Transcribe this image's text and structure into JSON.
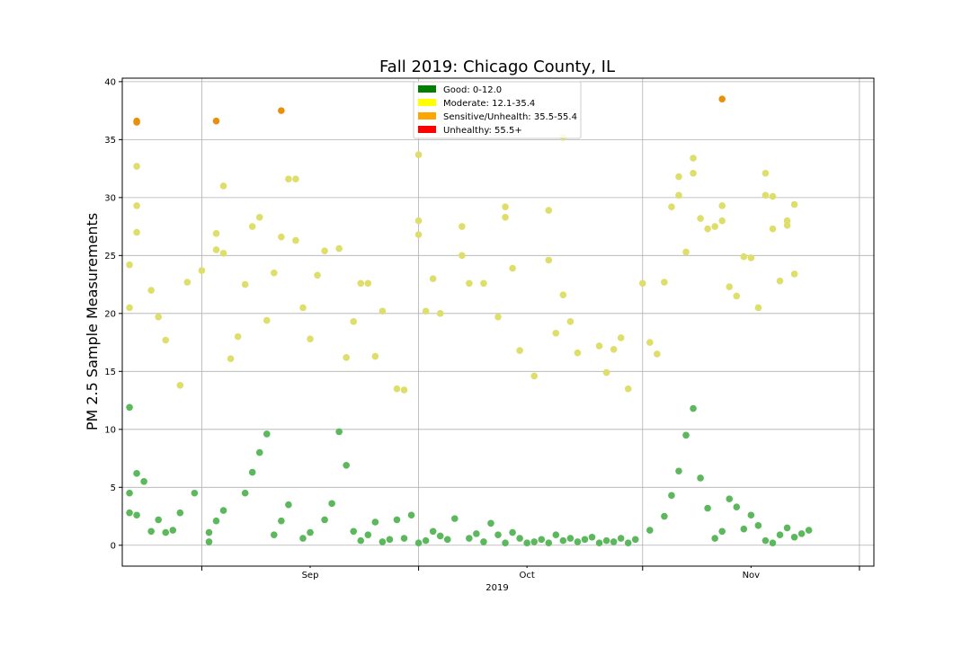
{
  "chart_data": {
    "type": "scatter",
    "title": "Fall 2019: Chicago County, IL",
    "ylabel": "PM 2.5 Sample Measurements",
    "xlabel": "",
    "x_axis": {
      "type": "date",
      "range": [
        "2019-08-21",
        "2019-12-03"
      ],
      "major_ticks": [
        "2019-09-01",
        "2019-10-01",
        "2019-11-01",
        "2019-12-01"
      ],
      "minor_tick_labels": [
        {
          "date": "2019-09-16",
          "label": "Sep"
        },
        {
          "date": "2019-10-16",
          "label": "Oct"
        },
        {
          "date": "2019-11-16",
          "label": "Nov"
        }
      ],
      "year_label": "2019"
    },
    "y_axis": {
      "range": [
        -1.8,
        40.3
      ],
      "ticks": [
        0,
        5,
        10,
        15,
        20,
        25,
        30,
        35,
        40
      ]
    },
    "grid": true,
    "legend": {
      "placement": "top-center",
      "entries": [
        {
          "label": "Good: 0-12.0",
          "color": "#008000"
        },
        {
          "label": "Moderate: 12.1-35.4",
          "color": "#ffff00"
        },
        {
          "label": "Sensitive/Unhealth: 35.5-55.4",
          "color": "#ffa500"
        },
        {
          "label": "Unhealthy: 55.5+",
          "color": "#ff0000"
        }
      ]
    },
    "category_colors": {
      "good": "#5cb85c",
      "moderate": "#dede6a",
      "sensitive": "#e8900c",
      "unhealthy": "#ff0000"
    },
    "series": [
      {
        "name": "Good: 0-12.0",
        "points": [
          [
            "2019-08-22",
            2.8
          ],
          [
            "2019-08-22",
            4.5
          ],
          [
            "2019-08-22",
            11.9
          ],
          [
            "2019-08-23",
            2.6
          ],
          [
            "2019-08-23",
            6.2
          ],
          [
            "2019-08-24",
            5.5
          ],
          [
            "2019-08-25",
            1.2
          ],
          [
            "2019-08-26",
            2.2
          ],
          [
            "2019-08-27",
            1.1
          ],
          [
            "2019-08-28",
            1.3
          ],
          [
            "2019-08-29",
            2.8
          ],
          [
            "2019-08-31",
            4.5
          ],
          [
            "2019-09-02",
            0.3
          ],
          [
            "2019-09-02",
            1.1
          ],
          [
            "2019-09-03",
            2.1
          ],
          [
            "2019-09-04",
            3.0
          ],
          [
            "2019-09-07",
            4.5
          ],
          [
            "2019-09-08",
            6.3
          ],
          [
            "2019-09-09",
            8.0
          ],
          [
            "2019-09-10",
            9.6
          ],
          [
            "2019-09-11",
            0.9
          ],
          [
            "2019-09-12",
            2.1
          ],
          [
            "2019-09-13",
            3.5
          ],
          [
            "2019-09-15",
            0.6
          ],
          [
            "2019-09-16",
            1.1
          ],
          [
            "2019-09-18",
            2.2
          ],
          [
            "2019-09-19",
            3.6
          ],
          [
            "2019-09-20",
            9.8
          ],
          [
            "2019-09-21",
            6.9
          ],
          [
            "2019-09-22",
            1.2
          ],
          [
            "2019-09-23",
            0.4
          ],
          [
            "2019-09-24",
            0.9
          ],
          [
            "2019-09-25",
            2.0
          ],
          [
            "2019-09-26",
            0.3
          ],
          [
            "2019-09-27",
            0.5
          ],
          [
            "2019-09-28",
            2.2
          ],
          [
            "2019-09-29",
            0.6
          ],
          [
            "2019-09-30",
            2.6
          ],
          [
            "2019-10-01",
            0.2
          ],
          [
            "2019-10-02",
            0.4
          ],
          [
            "2019-10-03",
            1.2
          ],
          [
            "2019-10-04",
            0.8
          ],
          [
            "2019-10-05",
            0.5
          ],
          [
            "2019-10-06",
            2.3
          ],
          [
            "2019-10-08",
            0.6
          ],
          [
            "2019-10-09",
            1.0
          ],
          [
            "2019-10-10",
            0.3
          ],
          [
            "2019-10-11",
            1.9
          ],
          [
            "2019-10-12",
            0.9
          ],
          [
            "2019-10-13",
            0.2
          ],
          [
            "2019-10-14",
            1.1
          ],
          [
            "2019-10-15",
            0.6
          ],
          [
            "2019-10-16",
            0.2
          ],
          [
            "2019-10-17",
            0.3
          ],
          [
            "2019-10-18",
            0.5
          ],
          [
            "2019-10-19",
            0.2
          ],
          [
            "2019-10-20",
            0.9
          ],
          [
            "2019-10-21",
            0.4
          ],
          [
            "2019-10-22",
            0.6
          ],
          [
            "2019-10-23",
            0.3
          ],
          [
            "2019-10-24",
            0.5
          ],
          [
            "2019-10-25",
            0.7
          ],
          [
            "2019-10-26",
            0.2
          ],
          [
            "2019-10-27",
            0.4
          ],
          [
            "2019-10-28",
            0.3
          ],
          [
            "2019-10-29",
            0.6
          ],
          [
            "2019-10-30",
            0.2
          ],
          [
            "2019-10-31",
            0.5
          ],
          [
            "2019-11-02",
            1.3
          ],
          [
            "2019-11-04",
            2.5
          ],
          [
            "2019-11-05",
            4.3
          ],
          [
            "2019-11-06",
            6.4
          ],
          [
            "2019-11-07",
            9.5
          ],
          [
            "2019-11-08",
            11.8
          ],
          [
            "2019-11-09",
            5.8
          ],
          [
            "2019-11-10",
            3.2
          ],
          [
            "2019-11-11",
            0.6
          ],
          [
            "2019-11-12",
            1.2
          ],
          [
            "2019-11-13",
            4.0
          ],
          [
            "2019-11-14",
            3.3
          ],
          [
            "2019-11-15",
            1.4
          ],
          [
            "2019-11-16",
            2.6
          ],
          [
            "2019-11-17",
            1.7
          ],
          [
            "2019-11-18",
            0.4
          ],
          [
            "2019-11-19",
            0.2
          ],
          [
            "2019-11-20",
            0.9
          ],
          [
            "2019-11-21",
            1.5
          ],
          [
            "2019-11-22",
            0.7
          ],
          [
            "2019-11-23",
            1.0
          ],
          [
            "2019-11-24",
            1.3
          ]
        ]
      },
      {
        "name": "Moderate: 12.1-35.4",
        "points": [
          [
            "2019-08-22",
            24.2
          ],
          [
            "2019-08-22",
            20.5
          ],
          [
            "2019-08-23",
            32.7
          ],
          [
            "2019-08-23",
            29.3
          ],
          [
            "2019-08-23",
            27.0
          ],
          [
            "2019-08-25",
            22.0
          ],
          [
            "2019-08-26",
            19.7
          ],
          [
            "2019-08-27",
            17.7
          ],
          [
            "2019-08-29",
            13.8
          ],
          [
            "2019-08-30",
            22.7
          ],
          [
            "2019-09-01",
            23.7
          ],
          [
            "2019-09-03",
            26.9
          ],
          [
            "2019-09-03",
            25.5
          ],
          [
            "2019-09-04",
            31.0
          ],
          [
            "2019-09-04",
            25.2
          ],
          [
            "2019-09-05",
            16.1
          ],
          [
            "2019-09-06",
            18.0
          ],
          [
            "2019-09-07",
            22.5
          ],
          [
            "2019-09-08",
            27.5
          ],
          [
            "2019-09-09",
            28.3
          ],
          [
            "2019-09-10",
            19.4
          ],
          [
            "2019-09-11",
            23.5
          ],
          [
            "2019-09-12",
            26.6
          ],
          [
            "2019-09-13",
            31.6
          ],
          [
            "2019-09-14",
            31.6
          ],
          [
            "2019-09-14",
            26.3
          ],
          [
            "2019-09-15",
            20.5
          ],
          [
            "2019-09-16",
            17.8
          ],
          [
            "2019-09-17",
            23.3
          ],
          [
            "2019-09-18",
            25.4
          ],
          [
            "2019-09-20",
            25.6
          ],
          [
            "2019-09-21",
            16.2
          ],
          [
            "2019-09-22",
            19.3
          ],
          [
            "2019-09-23",
            22.6
          ],
          [
            "2019-09-24",
            22.6
          ],
          [
            "2019-09-25",
            16.3
          ],
          [
            "2019-09-26",
            20.2
          ],
          [
            "2019-09-28",
            13.5
          ],
          [
            "2019-09-29",
            13.4
          ],
          [
            "2019-10-01",
            33.7
          ],
          [
            "2019-10-01",
            28.0
          ],
          [
            "2019-10-01",
            26.8
          ],
          [
            "2019-10-02",
            20.2
          ],
          [
            "2019-10-03",
            23.0
          ],
          [
            "2019-10-04",
            20.0
          ],
          [
            "2019-10-07",
            27.5
          ],
          [
            "2019-10-07",
            25.0
          ],
          [
            "2019-10-08",
            22.6
          ],
          [
            "2019-10-10",
            22.6
          ],
          [
            "2019-10-12",
            19.7
          ],
          [
            "2019-10-13",
            29.2
          ],
          [
            "2019-10-13",
            28.3
          ],
          [
            "2019-10-14",
            23.9
          ],
          [
            "2019-10-15",
            16.8
          ],
          [
            "2019-10-17",
            14.6
          ],
          [
            "2019-10-19",
            28.9
          ],
          [
            "2019-10-19",
            24.6
          ],
          [
            "2019-10-20",
            18.3
          ],
          [
            "2019-10-21",
            21.6
          ],
          [
            "2019-10-21",
            35.2
          ],
          [
            "2019-10-22",
            19.3
          ],
          [
            "2019-10-23",
            16.6
          ],
          [
            "2019-10-26",
            17.2
          ],
          [
            "2019-10-27",
            14.9
          ],
          [
            "2019-10-28",
            16.9
          ],
          [
            "2019-10-29",
            17.9
          ],
          [
            "2019-10-30",
            13.5
          ],
          [
            "2019-11-01",
            22.6
          ],
          [
            "2019-11-02",
            17.5
          ],
          [
            "2019-11-03",
            16.5
          ],
          [
            "2019-11-04",
            22.7
          ],
          [
            "2019-11-05",
            29.2
          ],
          [
            "2019-11-06",
            31.8
          ],
          [
            "2019-11-06",
            30.2
          ],
          [
            "2019-11-07",
            25.3
          ],
          [
            "2019-11-08",
            33.4
          ],
          [
            "2019-11-08",
            32.1
          ],
          [
            "2019-11-09",
            28.2
          ],
          [
            "2019-11-10",
            27.3
          ],
          [
            "2019-11-11",
            27.5
          ],
          [
            "2019-11-12",
            29.3
          ],
          [
            "2019-11-12",
            28.0
          ],
          [
            "2019-11-13",
            22.3
          ],
          [
            "2019-11-14",
            21.5
          ],
          [
            "2019-11-15",
            24.9
          ],
          [
            "2019-11-16",
            24.8
          ],
          [
            "2019-11-17",
            20.5
          ],
          [
            "2019-11-18",
            32.1
          ],
          [
            "2019-11-18",
            30.2
          ],
          [
            "2019-11-19",
            27.3
          ],
          [
            "2019-11-19",
            30.1
          ],
          [
            "2019-11-20",
            22.8
          ],
          [
            "2019-11-21",
            28.0
          ],
          [
            "2019-11-21",
            27.6
          ],
          [
            "2019-11-22",
            29.4
          ],
          [
            "2019-11-22",
            23.4
          ]
        ]
      },
      {
        "name": "Sensitive/Unhealth: 35.5-55.4",
        "points": [
          [
            "2019-08-23",
            36.6
          ],
          [
            "2019-08-23",
            36.5
          ],
          [
            "2019-09-03",
            36.6
          ],
          [
            "2019-09-12",
            37.5
          ],
          [
            "2019-11-12",
            38.5
          ]
        ]
      },
      {
        "name": "Unhealthy: 55.5+",
        "points": []
      }
    ]
  }
}
